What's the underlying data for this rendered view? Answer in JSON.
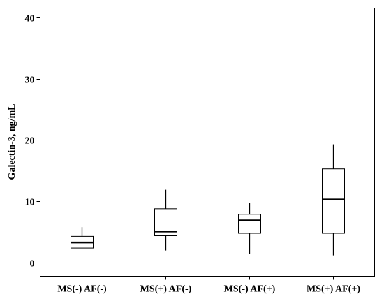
{
  "chart_data": {
    "type": "box",
    "title": "",
    "xlabel": "",
    "ylabel": "Galectin-3, ng/mL",
    "ylim": [
      -2.2,
      41.5
    ],
    "yticks": [
      0,
      10,
      20,
      30,
      40
    ],
    "grid": false,
    "categories": [
      "MS(-) AF(-)",
      "MS(+) AF(-)",
      "MS(-) AF(+)",
      "MS(+) AF(+)"
    ],
    "boxes": [
      {
        "category": "MS(-) AF(-)",
        "min": 2.4,
        "q1": 2.4,
        "median": 3.3,
        "q3": 4.3,
        "max": 5.8
      },
      {
        "category": "MS(+) AF(-)",
        "min": 2.0,
        "q1": 4.4,
        "median": 5.1,
        "q3": 8.8,
        "max": 11.9
      },
      {
        "category": "MS(-) AF(+)",
        "min": 1.5,
        "q1": 4.8,
        "median": 6.9,
        "q3": 7.9,
        "max": 9.8
      },
      {
        "category": "MS(+) AF(+)",
        "min": 1.2,
        "q1": 4.8,
        "median": 10.3,
        "q3": 15.3,
        "max": 19.3
      }
    ]
  }
}
